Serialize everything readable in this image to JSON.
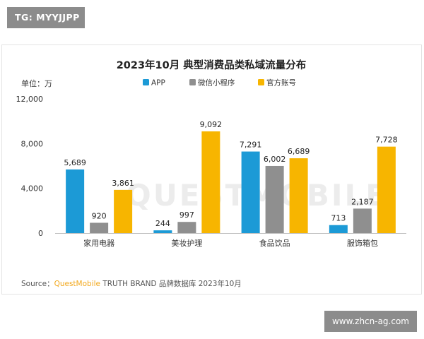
{
  "badge_top_left": "TG: MYYJJPP",
  "badge_bottom_right": "www.zhcn-ag.com",
  "watermark": "QUESTMOBILE",
  "source": {
    "label": "Source：",
    "brand": "QuestMobile",
    "rest": " TRUTH BRAND 品牌数据库 2023年10月"
  },
  "chart_data": {
    "type": "bar",
    "title": "2023年10月 典型消费品类私域流量分布",
    "ylabel": "单位：万",
    "xlabel": "",
    "categories": [
      "家用电器",
      "美妆护理",
      "食品饮品",
      "服饰箱包"
    ],
    "series": [
      {
        "name": "APP",
        "values": [
          5689,
          244,
          7291,
          713
        ],
        "color": "#1c9ad6"
      },
      {
        "name": "微信小程序",
        "values": [
          920,
          997,
          6002,
          2187
        ],
        "color": "#8f8f8f"
      },
      {
        "name": "官方账号",
        "values": [
          3861,
          9092,
          6689,
          7728
        ],
        "color": "#f7b500"
      }
    ],
    "ylim": [
      0,
      12000
    ],
    "yticks": [
      0,
      4000,
      8000,
      12000
    ],
    "ytick_labels": [
      "0",
      "4,000",
      "8,000",
      "12,000"
    ],
    "value_labels": [
      [
        "5,689",
        "244",
        "7,291",
        "713"
      ],
      [
        "920",
        "997",
        "6,002",
        "2,187"
      ],
      [
        "3,861",
        "9,092",
        "6,689",
        "7,728"
      ]
    ],
    "grid": false,
    "legend": "top-center"
  }
}
